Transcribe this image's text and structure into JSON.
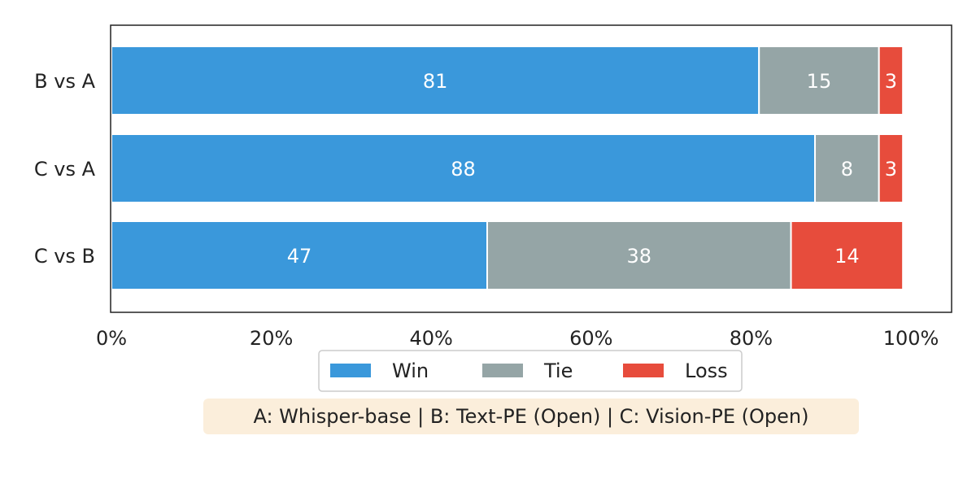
{
  "chart_data": {
    "type": "bar",
    "orientation": "horizontal",
    "stacked": true,
    "categories": [
      "B vs A",
      "C vs A",
      "C vs B"
    ],
    "series": [
      {
        "name": "Win",
        "values": [
          81,
          88,
          47
        ],
        "color": "#3a98db"
      },
      {
        "name": "Tie",
        "values": [
          15,
          8,
          38
        ],
        "color": "#95a5a6"
      },
      {
        "name": "Loss",
        "values": [
          3,
          3,
          14
        ],
        "color": "#e74c3c"
      }
    ],
    "xlim": [
      0,
      100
    ],
    "xticks": [
      "0%",
      "20%",
      "40%",
      "60%",
      "80%",
      "100%"
    ],
    "legend_position": "bottom-center",
    "grid": false
  },
  "caption": "A: Whisper-base | B: Text-PE (Open) | C: Vision-PE (Open)"
}
